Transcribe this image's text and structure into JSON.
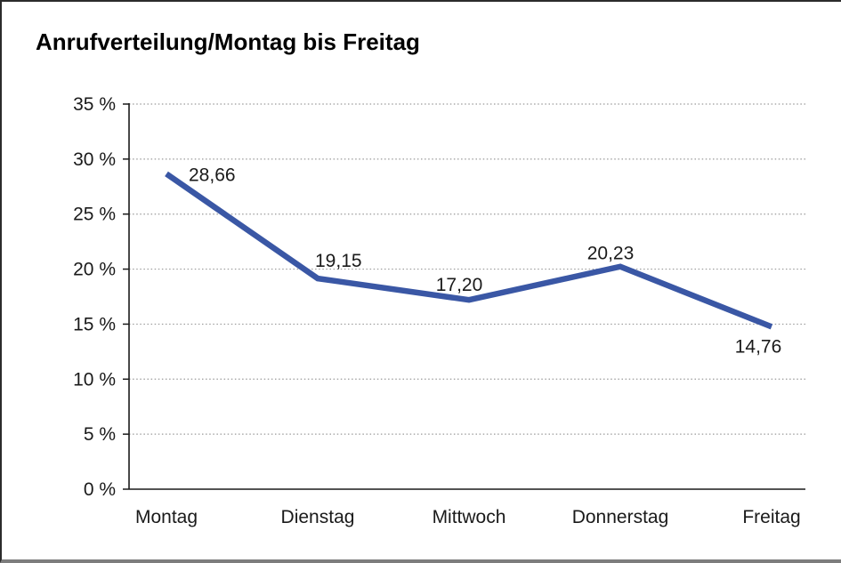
{
  "header": {
    "title": "Anrufverteilung/Montag bis Freitag"
  },
  "chart_data": {
    "type": "line",
    "title": "Anrufverteilung/Montag bis Freitag",
    "categories": [
      "Montag",
      "Dienstag",
      "Mittwoch",
      "Donnerstag",
      "Freitag"
    ],
    "values": [
      28.66,
      19.15,
      17.2,
      20.23,
      14.76
    ],
    "value_labels": [
      "28,66",
      "19,15",
      "17,20",
      "20,23",
      "14,76"
    ],
    "unit": "%",
    "ylim": [
      0,
      35
    ],
    "y_tick_values": [
      0,
      5,
      10,
      15,
      20,
      25,
      30,
      35
    ],
    "y_tick_labels": [
      "0 %",
      "5 %",
      "10 %",
      "15 %",
      "20 %",
      "25 %",
      "30 %",
      "35 %"
    ],
    "grid": "horizontal-dotted",
    "legend_position": "none",
    "line_color": "#3A57A5",
    "grid_color": "#9a9a9a",
    "axis_color": "#1a1a1a",
    "label_color": "#1a1a1a"
  }
}
